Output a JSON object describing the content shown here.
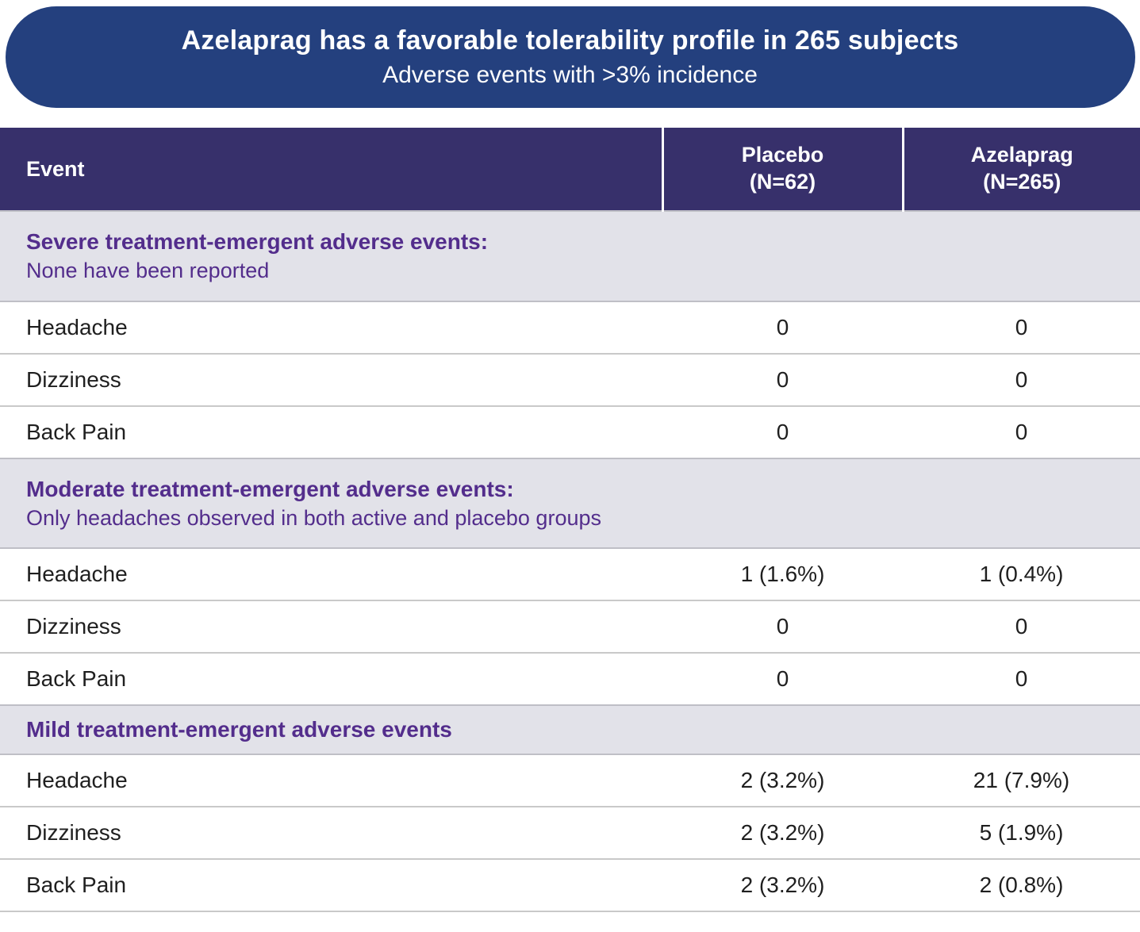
{
  "chart_data": {
    "type": "table",
    "title": "Azelaprag has a favorable tolerability profile in 265 subjects",
    "subtitle": "Adverse events with >3% incidence",
    "columns": [
      {
        "label": "Event",
        "n": ""
      },
      {
        "label": "Placebo",
        "n": "(N=62)"
      },
      {
        "label": "Azelaprag",
        "n": "(N=265)"
      }
    ],
    "sections": [
      {
        "title": "Severe treatment-emergent adverse events:",
        "note": "None have been reported",
        "rows": [
          {
            "event": "Headache",
            "placebo": "0",
            "azelaprag": "0"
          },
          {
            "event": "Dizziness",
            "placebo": "0",
            "azelaprag": "0"
          },
          {
            "event": "Back Pain",
            "placebo": "0",
            "azelaprag": "0"
          }
        ]
      },
      {
        "title": "Moderate treatment-emergent adverse events:",
        "note": "Only headaches observed in both active and placebo groups",
        "rows": [
          {
            "event": "Headache",
            "placebo": "1 (1.6%)",
            "azelaprag": "1 (0.4%)"
          },
          {
            "event": "Dizziness",
            "placebo": "0",
            "azelaprag": "0"
          },
          {
            "event": "Back Pain",
            "placebo": "0",
            "azelaprag": "0"
          }
        ]
      },
      {
        "title": "Mild treatment-emergent adverse events",
        "note": "",
        "rows": [
          {
            "event": "Headache",
            "placebo": "2 (3.2%)",
            "azelaprag": "21 (7.9%)"
          },
          {
            "event": "Dizziness",
            "placebo": "2 (3.2%)",
            "azelaprag": "5 (1.9%)"
          },
          {
            "event": "Back Pain",
            "placebo": "2 (3.2%)",
            "azelaprag": "2 (0.8%)"
          }
        ]
      }
    ],
    "layout_hints": {
      "grid": "horizontal row dividers only, white column separators in header",
      "legend_position": "none"
    }
  },
  "colors": {
    "banner_bg": "#24407e",
    "header_bg": "#37306b",
    "header_text": "#ffffff",
    "section_bg": "#e2e2e9",
    "section_text": "#532d8c",
    "body_text": "#1f1f1f",
    "row_divider": "#c9c9c9"
  }
}
